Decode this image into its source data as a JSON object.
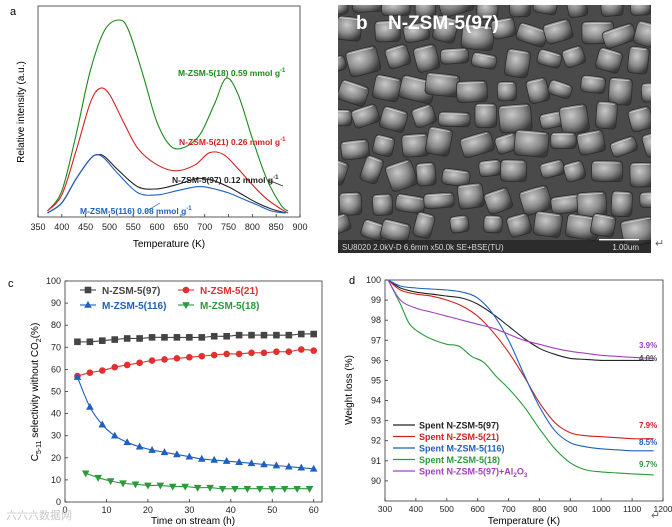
{
  "watermark": "六六六数据网",
  "return_glyph": "↵",
  "panel_a": {
    "label": "a",
    "xlabel": "Temperature (K)",
    "ylabel": "Relative intensity (a.u.)",
    "xticks": [
      350,
      400,
      450,
      500,
      550,
      600,
      650,
      700,
      750,
      800,
      850,
      900
    ],
    "annotations": [
      {
        "name": "M-ZSM-5(18)",
        "value": "0.59 mmol g",
        "sup": "-1",
        "color": "#1a8a1a"
      },
      {
        "name": "N-ZSM-5(21)",
        "value": "0.26 mmol g",
        "sup": "-1",
        "color": "#d42020"
      },
      {
        "name": "N-ZSM-5(97)",
        "value": "0.12 mmol g",
        "sup": "-1",
        "color": "#222222"
      },
      {
        "name": "M-ZSM-5(116)",
        "value": "0.08 mmol g",
        "sup": "-1",
        "color": "#1f5fbf"
      }
    ]
  },
  "panel_b": {
    "label": "b",
    "title": "N-ZSM-5(97)",
    "info": "SU8020 2.0kV-D 6.6mm x50.0k SE+BSE(TU)",
    "scale": "1.00um"
  },
  "panel_c": {
    "label": "c",
    "xlabel": "Time on stream (h)",
    "ylabel_main": "C",
    "ylabel_sub": "5-11",
    "ylabel_rest": " selectivity without CO",
    "ylabel_sub2": "2",
    "ylabel_end": "(%)",
    "xticks": [
      0,
      10,
      20,
      30,
      40,
      50,
      60
    ],
    "yticks": [
      0,
      10,
      20,
      30,
      40,
      50,
      60,
      70,
      80,
      90,
      100
    ],
    "legend": [
      {
        "name": "N-ZSM-5(97)",
        "color": "#444444",
        "marker": "square"
      },
      {
        "name": "N-ZSM-5(21)",
        "color": "#e03030",
        "marker": "circle"
      },
      {
        "name": "M-ZSM-5(116)",
        "color": "#1f5fbf",
        "marker": "triangle-up"
      },
      {
        "name": "M-ZSM-5(18)",
        "color": "#2a9a3a",
        "marker": "triangle-down"
      }
    ]
  },
  "panel_d": {
    "label": "d",
    "xlabel": "Temperature (K)",
    "ylabel": "Weight loss (%)",
    "xticks": [
      300,
      400,
      500,
      600,
      700,
      800,
      900,
      1000,
      1100,
      1200
    ],
    "yticks": [
      90,
      91,
      92,
      93,
      94,
      95,
      96,
      97,
      98,
      99,
      100
    ],
    "end_labels": [
      {
        "text": "3.9%",
        "color": "#a040c0"
      },
      {
        "text": "4.0%",
        "color": "#555555"
      },
      {
        "text": "7.9%",
        "color": "#d42020"
      },
      {
        "text": "8.5%",
        "color": "#1f5fbf"
      },
      {
        "text": "9.7%",
        "color": "#2a9a3a"
      }
    ],
    "legend": [
      {
        "name": "Spent N-ZSM-5(97)",
        "color": "#222222"
      },
      {
        "name": "Spent N-ZSM-5(21)",
        "color": "#d42020"
      },
      {
        "name": "Spent M-ZSM-5(116)",
        "color": "#1f5fbf"
      },
      {
        "name": "Spent M-ZSM-5(18)",
        "color": "#2a9a3a"
      },
      {
        "name": "Spent N-ZSM-5(97)+Al",
        "name_sub": "2",
        "name_rest": "O",
        "name_sub2": "3",
        "color": "#a040c0"
      }
    ]
  },
  "chart_data": [
    {
      "panel": "a",
      "type": "line",
      "title": "",
      "xlabel": "Temperature (K)",
      "ylabel": "Relative intensity (a.u.)",
      "xlim": [
        350,
        900
      ],
      "ylim": [
        0,
        100
      ],
      "series": [
        {
          "name": "M-ZSM-5(18)",
          "color": "#1a8a1a",
          "x": [
            370,
            400,
            430,
            460,
            490,
            520,
            540,
            570,
            600,
            630,
            660,
            690,
            720,
            745,
            770,
            800,
            830,
            860,
            875
          ],
          "y": [
            2,
            12,
            40,
            72,
            92,
            97,
            92,
            70,
            46,
            34,
            34,
            40,
            55,
            68,
            60,
            38,
            18,
            5,
            2
          ]
        },
        {
          "name": "N-ZSM-5(21)",
          "color": "#d42020",
          "x": [
            370,
            400,
            430,
            460,
            480,
            500,
            530,
            560,
            600,
            640,
            680,
            710,
            740,
            770,
            800,
            830,
            860,
            875
          ],
          "y": [
            2,
            10,
            32,
            56,
            63,
            60,
            46,
            33,
            25,
            22,
            25,
            31,
            30,
            23,
            15,
            8,
            3,
            1
          ]
        },
        {
          "name": "N-ZSM-5(97)",
          "color": "#222222",
          "x": [
            370,
            400,
            430,
            460,
            475,
            490,
            520,
            560,
            600,
            640,
            680,
            700,
            720,
            750,
            780,
            810,
            840,
            870
          ],
          "y": [
            1,
            6,
            18,
            28,
            30,
            29,
            22,
            14,
            13,
            15,
            18,
            18,
            17,
            14,
            10,
            6,
            3,
            1
          ]
        },
        {
          "name": "M-ZSM-5(116)",
          "color": "#1f5fbf",
          "x": [
            370,
            400,
            430,
            460,
            475,
            490,
            520,
            560,
            600,
            640,
            680,
            700,
            720,
            750,
            780,
            810,
            840,
            870
          ],
          "y": [
            1,
            6,
            18,
            28,
            30,
            28,
            20,
            11,
            10,
            12,
            14,
            14,
            13,
            11,
            8,
            5,
            2,
            1
          ]
        }
      ]
    },
    {
      "panel": "c",
      "type": "line",
      "title": "",
      "xlabel": "Time on stream (h)",
      "ylabel": "C5-11 selectivity without CO2 (%)",
      "xlim": [
        0,
        62
      ],
      "ylim": [
        0,
        100
      ],
      "series": [
        {
          "name": "N-ZSM-5(97)",
          "x": [
            3,
            6,
            9,
            12,
            15,
            18,
            21,
            24,
            27,
            30,
            33,
            36,
            39,
            42,
            45,
            48,
            51,
            54,
            57,
            60
          ],
          "y": [
            72.5,
            72.5,
            73,
            73.5,
            74,
            74,
            74.5,
            74.5,
            74.5,
            74.5,
            74.5,
            75,
            75,
            75.5,
            75.5,
            75.5,
            75.5,
            75.5,
            76,
            76
          ]
        },
        {
          "name": "N-ZSM-5(21)",
          "x": [
            3,
            6,
            9,
            12,
            15,
            18,
            21,
            24,
            27,
            30,
            33,
            36,
            39,
            42,
            45,
            48,
            51,
            54,
            57,
            60
          ],
          "y": [
            57,
            58.5,
            59.5,
            61,
            62,
            63,
            64,
            64.5,
            65,
            65.5,
            66,
            66.5,
            67,
            67,
            67.5,
            67.5,
            68,
            68,
            69,
            68.5
          ]
        },
        {
          "name": "M-ZSM-5(116)",
          "x": [
            3,
            6,
            9,
            12,
            15,
            18,
            21,
            24,
            27,
            30,
            33,
            36,
            39,
            42,
            45,
            48,
            51,
            54,
            57,
            60
          ],
          "y": [
            56.5,
            43,
            35,
            30,
            27,
            25,
            23.5,
            22.5,
            21.5,
            20.5,
            19.5,
            19,
            18.5,
            18,
            17.5,
            17,
            16.5,
            16,
            15.5,
            15
          ]
        },
        {
          "name": "M-ZSM-5(18)",
          "x": [
            5,
            8,
            11,
            14,
            17,
            20,
            23,
            26,
            29,
            32,
            35,
            38,
            41,
            44,
            47,
            50,
            53,
            56,
            59
          ],
          "y": [
            13,
            11,
            9.5,
            8.5,
            8,
            7.5,
            7.5,
            7,
            7,
            6.5,
            6.5,
            6,
            6,
            6,
            6,
            6,
            6,
            6,
            6
          ]
        }
      ]
    },
    {
      "panel": "d",
      "type": "line",
      "title": "",
      "xlabel": "Temperature (K)",
      "ylabel": "Weight loss (%)",
      "xlim": [
        300,
        1200
      ],
      "ylim": [
        89,
        100
      ],
      "series": [
        {
          "name": "Spent N-ZSM-5(97)",
          "x": [
            310,
            350,
            400,
            450,
            500,
            550,
            600,
            650,
            700,
            750,
            800,
            850,
            900,
            950,
            1000,
            1050,
            1100,
            1170
          ],
          "y": [
            100,
            99.6,
            99.4,
            99.3,
            99.2,
            99.1,
            98.8,
            98.3,
            97.7,
            97.1,
            96.6,
            96.3,
            96.1,
            96.05,
            96.0,
            96.0,
            96.0,
            96.0
          ]
        },
        {
          "name": "Spent N-ZSM-5(21)",
          "x": [
            310,
            350,
            400,
            450,
            500,
            550,
            600,
            650,
            700,
            750,
            800,
            850,
            900,
            950,
            1000,
            1050,
            1100,
            1170
          ],
          "y": [
            100,
            99.5,
            99.3,
            99.2,
            99.0,
            98.7,
            98.2,
            97.4,
            96.4,
            95.2,
            93.9,
            92.9,
            92.4,
            92.25,
            92.2,
            92.15,
            92.1,
            92.1
          ]
        },
        {
          "name": "Spent M-ZSM-5(116)",
          "x": [
            310,
            350,
            400,
            450,
            500,
            550,
            600,
            650,
            700,
            750,
            800,
            850,
            900,
            950,
            1000,
            1050,
            1100,
            1170
          ],
          "y": [
            100,
            99.7,
            99.6,
            99.55,
            99.5,
            99.4,
            99.1,
            98.3,
            97.0,
            95.3,
            93.7,
            92.5,
            91.9,
            91.7,
            91.6,
            91.55,
            91.5,
            91.5
          ]
        },
        {
          "name": "Spent M-ZSM-5(18)",
          "x": [
            310,
            350,
            380,
            420,
            460,
            500,
            540,
            580,
            620,
            660,
            700,
            750,
            800,
            850,
            900,
            950,
            1000,
            1050,
            1100,
            1170
          ],
          "y": [
            100,
            98.8,
            97.8,
            97.3,
            97.0,
            96.8,
            96.7,
            96.2,
            95.9,
            95.2,
            94.6,
            93.7,
            92.6,
            91.6,
            90.9,
            90.55,
            90.45,
            90.4,
            90.35,
            90.3
          ]
        },
        {
          "name": "Spent N-ZSM-5(97)+Al2O3",
          "x": [
            310,
            350,
            400,
            450,
            500,
            550,
            600,
            650,
            700,
            750,
            800,
            850,
            900,
            950,
            1000,
            1050,
            1100,
            1170
          ],
          "y": [
            100,
            99.0,
            98.6,
            98.4,
            98.2,
            98.0,
            97.8,
            97.6,
            97.3,
            97.0,
            96.8,
            96.6,
            96.45,
            96.35,
            96.25,
            96.2,
            96.15,
            96.1
          ]
        }
      ]
    }
  ]
}
